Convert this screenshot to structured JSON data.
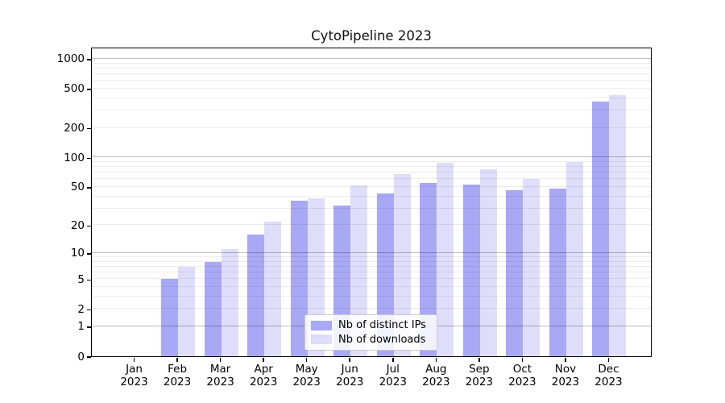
{
  "chart_data": {
    "type": "bar",
    "title": "CytoPipeline 2023",
    "categories": [
      "Jan",
      "Feb",
      "Mar",
      "Apr",
      "May",
      "Jun",
      "Jul",
      "Aug",
      "Sep",
      "Oct",
      "Nov",
      "Dec"
    ],
    "category_year": "2023",
    "series": [
      {
        "name": "Nb of distinct IPs",
        "color": "#a8a8f5",
        "values": [
          0,
          5,
          8,
          16,
          36,
          32,
          43,
          55,
          53,
          46,
          48,
          370
        ]
      },
      {
        "name": "Nb of downloads",
        "color": "#dedefa",
        "values": [
          0,
          7,
          11,
          22,
          38,
          52,
          68,
          88,
          76,
          60,
          90,
          430
        ]
      }
    ],
    "y_ticks": [
      0,
      1,
      2,
      5,
      10,
      20,
      50,
      100,
      200,
      500,
      1000
    ],
    "y_scale": "log1p",
    "ylim": [
      0,
      1300
    ],
    "xlabel": "",
    "ylabel": "",
    "grid": "on",
    "legend_position": "lower center",
    "axis_color": "#000000",
    "major_grid_color": "#bdbdbd",
    "minor_grid_color": "#ebebeb",
    "background_color": "#ffffff"
  }
}
